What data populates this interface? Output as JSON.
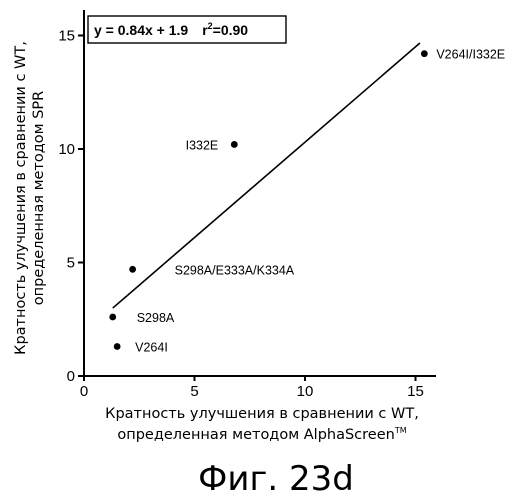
{
  "chart_data": {
    "type": "scatter",
    "title": "",
    "xlabel_line1": "Кратность улучшения в сравнении с WT,",
    "xlabel_line2": "определенная методом AlphaScreen",
    "xlabel_tm": "TM",
    "ylabel_line1": "Кратность улучшения в сравнении с WT,",
    "ylabel_line2": "определенная методом SPR",
    "xlim": [
      0,
      16
    ],
    "ylim": [
      0,
      16
    ],
    "x_ticks": [
      0,
      5,
      10,
      15
    ],
    "y_ticks": [
      0,
      5,
      10,
      15
    ],
    "points": [
      {
        "label": "V264I/I332E",
        "x": 15.4,
        "y": 14.2
      },
      {
        "label": "I332E",
        "x": 6.8,
        "y": 10.2
      },
      {
        "label": "S298A/E333A/K334A",
        "x": 2.2,
        "y": 4.7
      },
      {
        "label": "S298A",
        "x": 1.3,
        "y": 2.6
      },
      {
        "label": "V264I",
        "x": 1.5,
        "y": 1.3
      }
    ],
    "fit_line": {
      "slope": 0.84,
      "intercept": 1.9,
      "x_start": 1.3,
      "x_end": 15.2
    },
    "equation_main": "y = 0.84x + 1.9",
    "equation_r": "r",
    "equation_exp": "2",
    "equation_val": "=0.90",
    "grid": false,
    "legend": "none"
  },
  "figure_caption": "Фиг. 23d"
}
